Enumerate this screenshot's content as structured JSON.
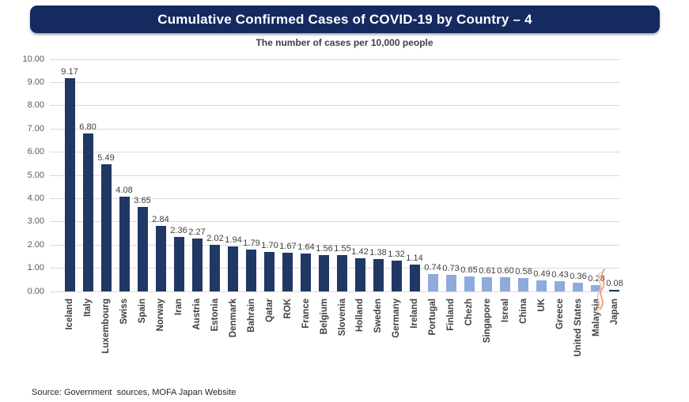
{
  "header": {
    "title": "Cumulative Confirmed Cases of COVID-19 by Country – 4"
  },
  "chart_data": {
    "type": "bar",
    "title": "Cumulative Confirmed Cases of COVID-19 by Country – 4",
    "subtitle": "The number of cases per 10,000 people",
    "categories": [
      "Iceland",
      "Italy",
      "Luxembourg",
      "Swiss",
      "Spain",
      "Norway",
      "Iran",
      "Austria",
      "Estonia",
      "Denmark",
      "Bahrain",
      "Qatar",
      "ROK",
      "France",
      "Belgium",
      "Slovenia",
      "Holland",
      "Sweden",
      "Germany",
      "Ireland",
      "Portugal",
      "Finland",
      "Chezh",
      "Singapore",
      "Isreal",
      "China",
      "UK",
      "Greece",
      "United States",
      "Malaysia",
      "Japan"
    ],
    "values": [
      9.17,
      6.8,
      5.49,
      4.08,
      3.65,
      2.84,
      2.36,
      2.27,
      2.02,
      1.94,
      1.79,
      1.7,
      1.67,
      1.64,
      1.56,
      1.55,
      1.42,
      1.38,
      1.32,
      1.14,
      0.74,
      0.73,
      0.65,
      0.61,
      0.6,
      0.58,
      0.49,
      0.43,
      0.36,
      0.28,
      0.08
    ],
    "value_labels": [
      "9.17",
      "6.80",
      "5.49",
      "4.08",
      "3.65",
      "2.84",
      "2.36",
      "2.27",
      "2.02",
      "1.94",
      "1.79",
      "1.70",
      "1.67",
      "1.64",
      "1.56",
      "1.55",
      "1.42",
      "1.38",
      "1.32",
      "1.14",
      "0.74",
      "0.73",
      "0.65",
      "0.61",
      "0.60",
      "0.58",
      "0.49",
      "0.43",
      "0.36",
      "0.28",
      "0.08"
    ],
    "bar_colors": [
      "#1F3864",
      "#1F3864",
      "#1F3864",
      "#1F3864",
      "#1F3864",
      "#1F3864",
      "#1F3864",
      "#1F3864",
      "#1F3864",
      "#1F3864",
      "#1F3864",
      "#1F3864",
      "#1F3864",
      "#1F3864",
      "#1F3864",
      "#1F3864",
      "#1F3864",
      "#1F3864",
      "#1F3864",
      "#1F3864",
      "#8FAADC",
      "#8FAADC",
      "#8FAADC",
      "#8FAADC",
      "#8FAADC",
      "#8FAADC",
      "#8FAADC",
      "#8FAADC",
      "#8FAADC",
      "#8FAADC",
      "#1F3864"
    ],
    "ylim": [
      0,
      10
    ],
    "ytick_step": 1,
    "ytick_labels": [
      "0.00",
      "1.00",
      "2.00",
      "3.00",
      "4.00",
      "5.00",
      "6.00",
      "7.00",
      "8.00",
      "9.00",
      "10.00"
    ],
    "grid": true,
    "legend": "none",
    "xlabel": "",
    "ylabel": "",
    "axis_break_marker": {
      "after_category": "Malaysia",
      "before_category": "Japan",
      "color": "#E89B7B"
    }
  },
  "colors": {
    "banner_background": "#152A5F",
    "bar_dark": "#1F3864",
    "bar_light": "#8FAADC",
    "gridline": "#D9D9D9",
    "squiggle": "#E89B7B"
  },
  "footer": {
    "source": "Source: Government  sources, MOFA Japan Website"
  }
}
